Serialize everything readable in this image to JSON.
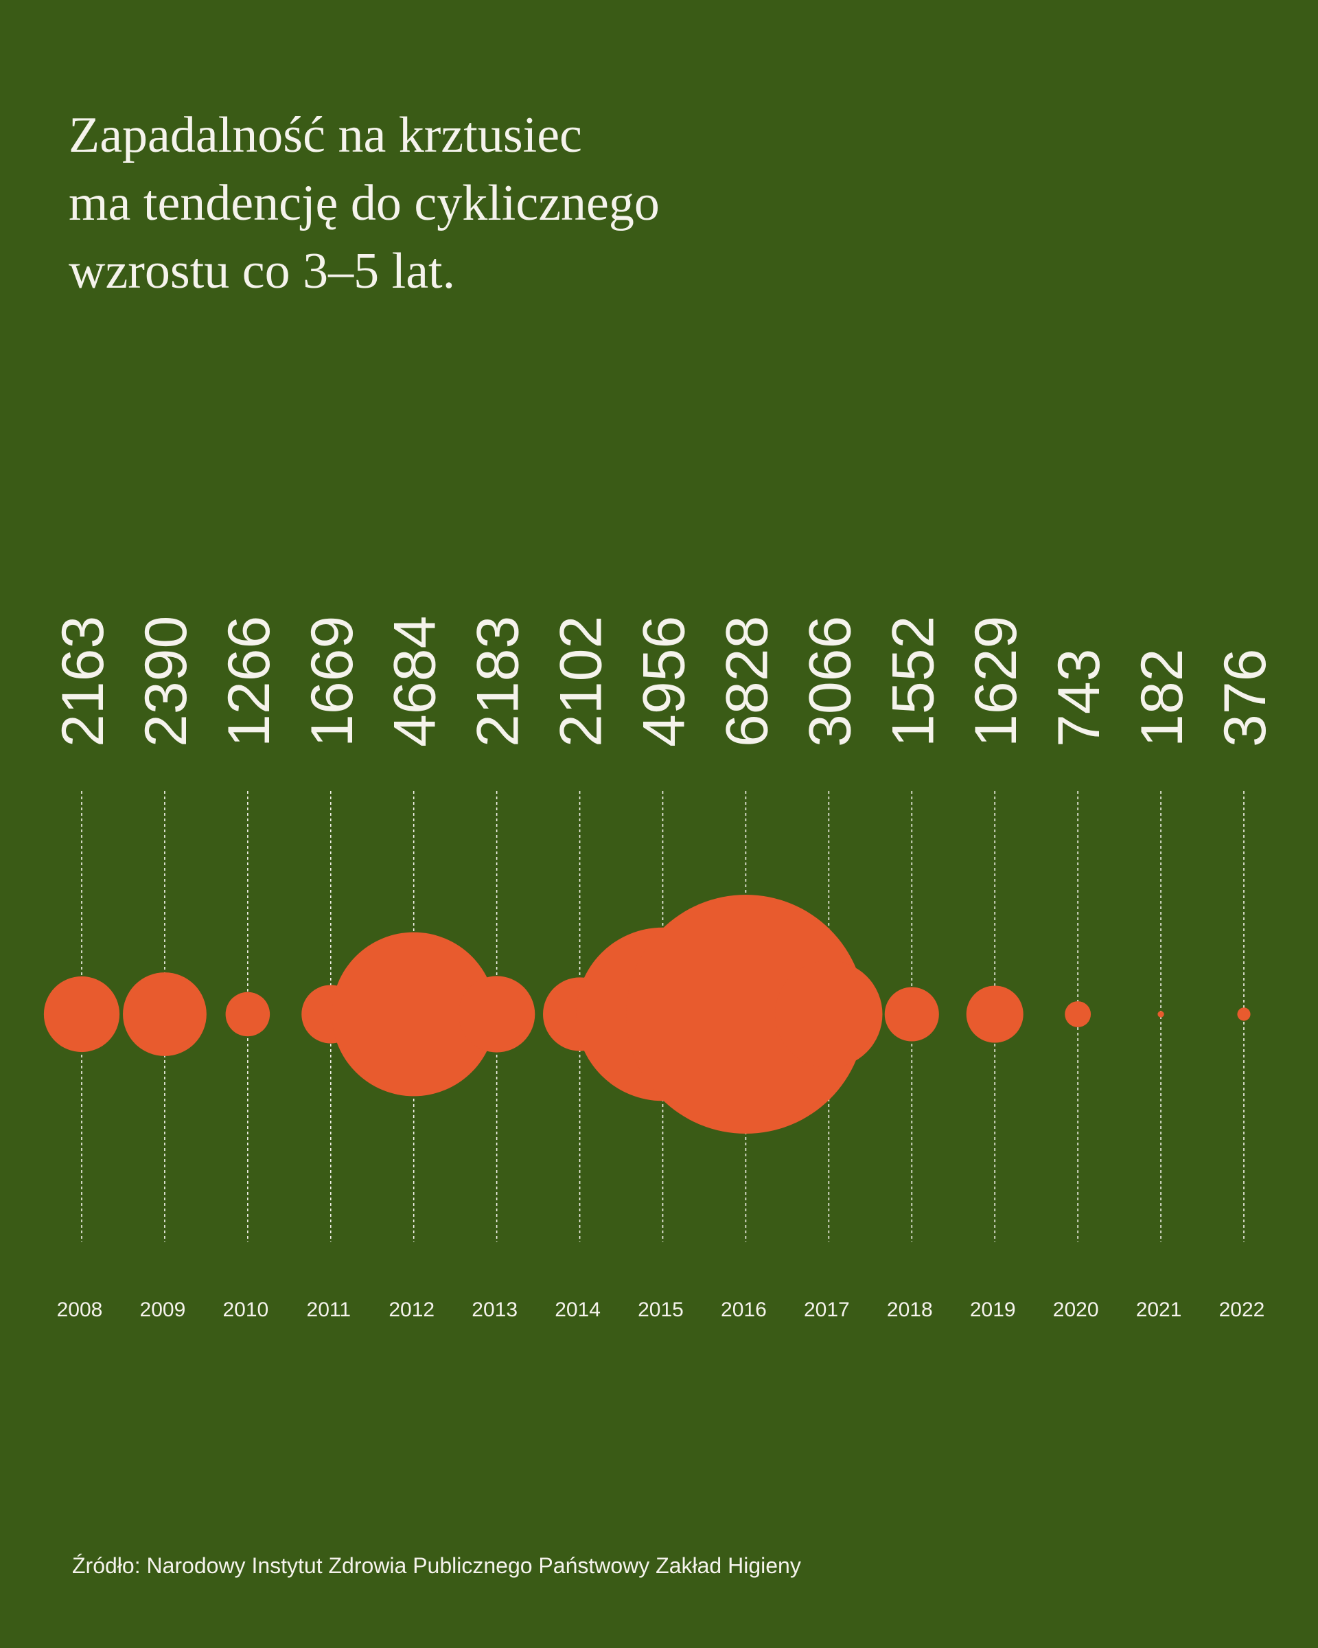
{
  "title_lines": [
    "Zapadalność na krztusiec",
    "ma tendencję do cyklicznego",
    "wzrostu co 3–5 lat."
  ],
  "source": "Źródło: Narodowy Instytut Zdrowia Publicznego Państwowy Zakład Higieny",
  "colors": {
    "background": "#3A5B16",
    "bubble": "#E85B2E",
    "text": "#F5F3EC",
    "gridline": "#F5F3EC"
  },
  "chart_data": {
    "type": "bubble",
    "title": "Zapadalność na krztusiec ma tendencję do cyklicznego wzrostu co 3–5 lat.",
    "xlabel": "",
    "ylabel": "",
    "grid": true,
    "categories": [
      "2008",
      "2009",
      "2010",
      "2011",
      "2012",
      "2013",
      "2014",
      "2015",
      "2016",
      "2017",
      "2018",
      "2019",
      "2020",
      "2021",
      "2022"
    ],
    "values": [
      2163,
      2390,
      1266,
      1669,
      4684,
      2183,
      2102,
      4956,
      6828,
      3066,
      1552,
      1629,
      743,
      182,
      376
    ],
    "value_labels": [
      "2163",
      "2390",
      "1266",
      "1669",
      "4684",
      "2183",
      "2102",
      "4956",
      "6828",
      "3066",
      "1552",
      "1629",
      "743",
      "182",
      "376"
    ],
    "size_encoding": "radius proportional to value"
  }
}
